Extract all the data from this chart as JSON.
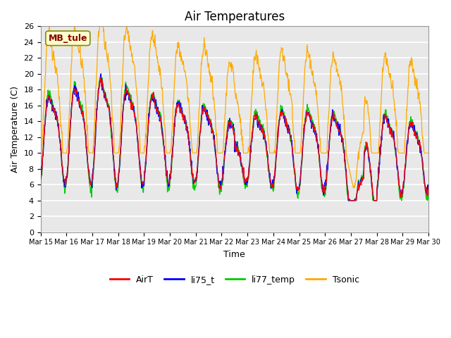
{
  "title": "Air Temperatures",
  "xlabel": "Time",
  "ylabel": "Air Temperature (C)",
  "ylim": [
    0,
    26
  ],
  "yticks": [
    0,
    2,
    4,
    6,
    8,
    10,
    12,
    14,
    16,
    18,
    20,
    22,
    24,
    26
  ],
  "xtick_labels": [
    "Mar 15",
    "Mar 16",
    "Mar 17",
    "Mar 18",
    "Mar 19",
    "Mar 20",
    "Mar 21",
    "Mar 22",
    "Mar 23",
    "Mar 24",
    "Mar 25",
    "Mar 26",
    "Mar 27",
    "Mar 28",
    "Mar 29",
    "Mar 30"
  ],
  "legend_labels": [
    "AirT",
    "li75_t",
    "li77_temp",
    "Tsonic"
  ],
  "line_colors": [
    "#ff0000",
    "#0000ff",
    "#00cc00",
    "#ffaa00"
  ],
  "annotation_text": "MB_tule",
  "annotation_color": "#880000",
  "annotation_bg": "#ffffcc",
  "annotation_border": "#888800",
  "fig_bg_color": "#ffffff",
  "plot_bg_color": "#e8e8e8",
  "grid_color": "#ffffff",
  "title_fontsize": 12,
  "axis_fontsize": 9,
  "tick_fontsize": 8,
  "xtick_fontsize": 7
}
